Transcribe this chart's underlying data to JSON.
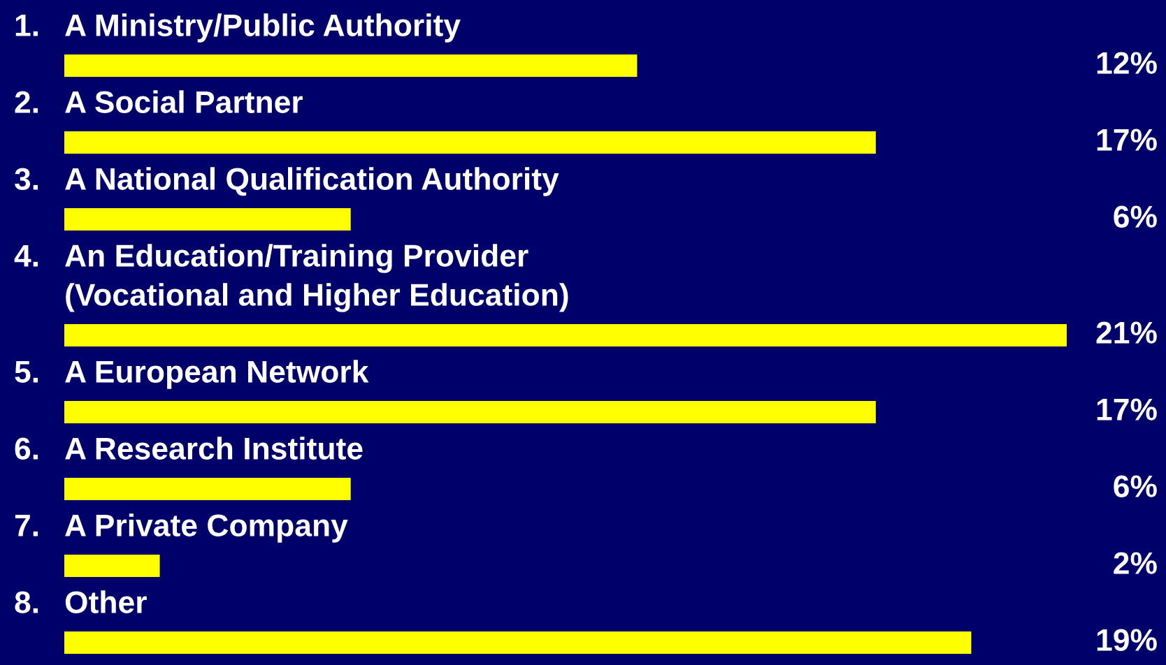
{
  "chart_data": {
    "type": "bar",
    "orientation": "horizontal",
    "categories": [
      "1. A Ministry/Public Authority",
      "2. A Social Partner",
      "3. A National Qualification Authority",
      "4. An Education/Training Provider\n(Vocational and Higher Education)",
      "5. A European Network",
      "6. A Research Institute",
      "7. A Private Company",
      "8. Other"
    ],
    "values": [
      12,
      17,
      6,
      21,
      17,
      6,
      2,
      19
    ],
    "value_labels": [
      "12%",
      "17%",
      "6%",
      "21%",
      "17%",
      "6%",
      "2%",
      "19%"
    ],
    "color": "#ffff00"
  }
}
